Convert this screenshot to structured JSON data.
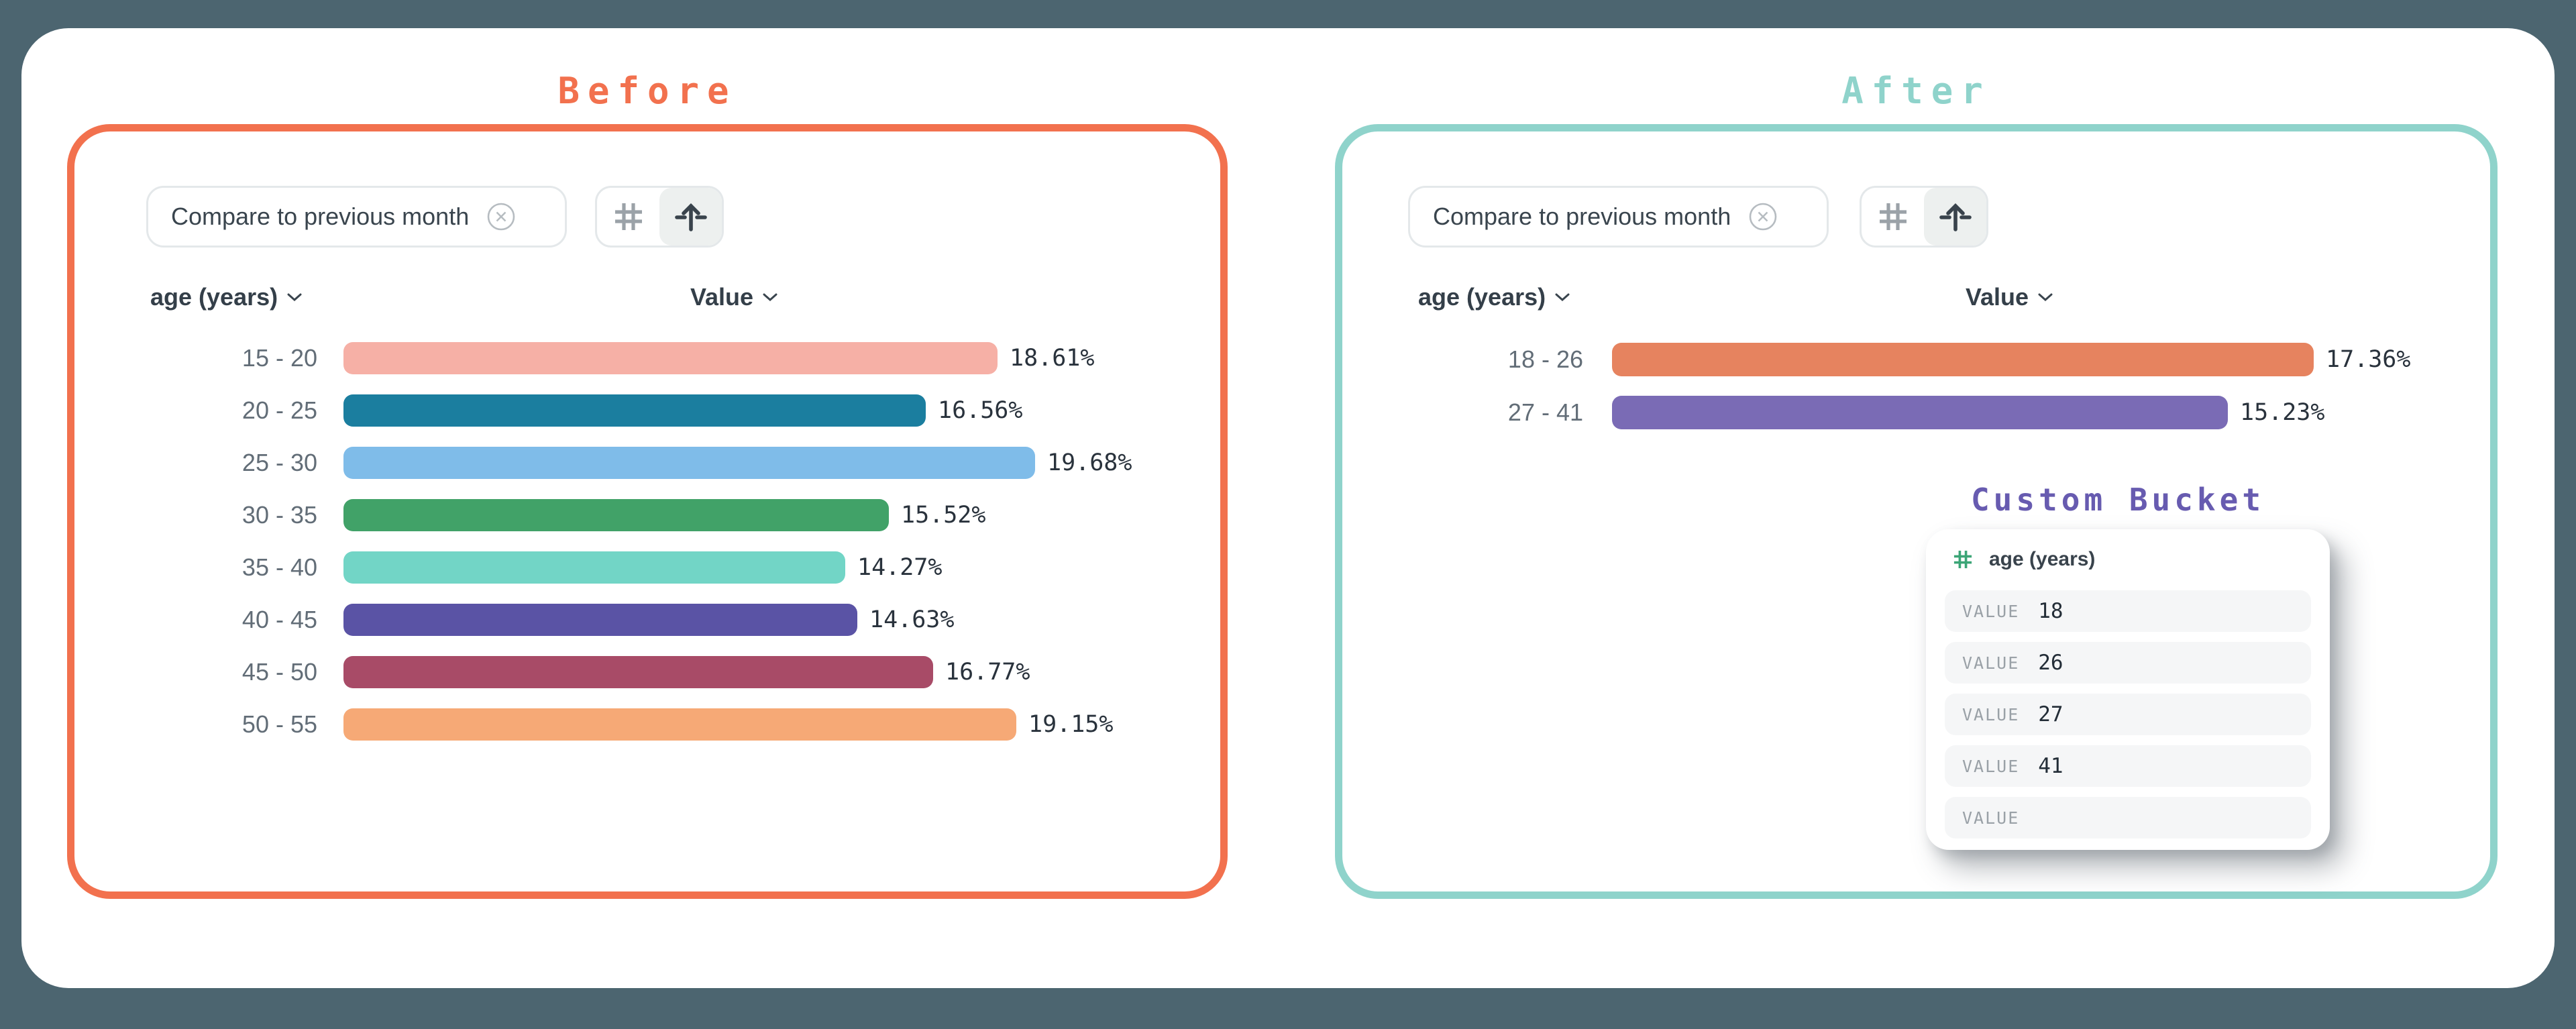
{
  "page": {
    "background": "#4C6570",
    "card_background": "#FFFFFF"
  },
  "before": {
    "title": "Before",
    "accent": "#F2714E",
    "chip_label": "Compare to previous month",
    "dimension_header": "age (years)",
    "value_header": "Value",
    "value_labels": [
      "18.61%",
      "16.56%",
      "19.68%",
      "15.52%",
      "14.27%",
      "14.63%",
      "16.77%",
      "19.15%"
    ]
  },
  "after": {
    "title": "After",
    "accent": "#8FD3CB",
    "chip_label": "Compare to previous month",
    "dimension_header": "age (years)",
    "value_header": "Value",
    "value_labels": [
      "17.36%",
      "15.23%"
    ],
    "custom_bucket": {
      "title": "Custom Bucket",
      "title_color": "#675BB0",
      "field_label": "age (years)",
      "field_icon_color": "#3BA576",
      "value_label": "VALUE",
      "rows": [
        {
          "value": "18"
        },
        {
          "value": "26"
        },
        {
          "value": "27"
        },
        {
          "value": "41"
        },
        {
          "value": ""
        }
      ]
    }
  },
  "chart_data": [
    {
      "type": "bar",
      "orientation": "horizontal",
      "title": "Before",
      "xlabel": "Value",
      "ylabel": "age (years)",
      "value_format": "percent",
      "categories": [
        "15 - 20",
        "20 - 25",
        "25 - 30",
        "30 - 35",
        "35 - 40",
        "40 - 45",
        "45 - 50",
        "50 - 55"
      ],
      "values": [
        18.61,
        16.56,
        19.68,
        15.52,
        14.27,
        14.63,
        16.77,
        19.15
      ],
      "colors": [
        "#F6B0A6",
        "#1B7E9F",
        "#7FBCE9",
        "#41A268",
        "#72D5C6",
        "#5A53A5",
        "#A84B67",
        "#F6A976"
      ]
    },
    {
      "type": "bar",
      "orientation": "horizontal",
      "title": "After",
      "xlabel": "Value",
      "ylabel": "age (years)",
      "value_format": "percent",
      "categories": [
        "18 - 26",
        "27 - 41"
      ],
      "values": [
        17.36,
        15.23
      ],
      "colors": [
        "#E6835F",
        "#7A6BB5"
      ]
    }
  ]
}
